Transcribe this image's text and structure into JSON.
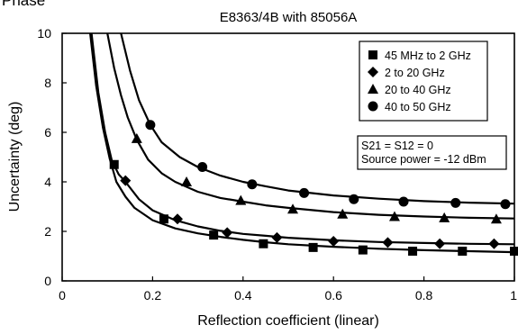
{
  "page_label": "Phase",
  "chart_data": {
    "type": "line",
    "title": "E8363/4B with 85056A",
    "xlabel": "Reflection coefficient (linear)",
    "ylabel": "Uncertainty (deg)",
    "xlim": [
      0,
      1
    ],
    "ylim": [
      0,
      10
    ],
    "xticks": [
      "0",
      "0.2",
      "0.4",
      "0.6",
      "0.8",
      "1"
    ],
    "yticks": [
      "0",
      "2",
      "4",
      "6",
      "8",
      "10"
    ],
    "grid": false,
    "legend_position": "top-right",
    "series": [
      {
        "name": "45 MHz to 2 GHz",
        "marker": "square",
        "curve": [
          [
            0.062,
            10
          ],
          [
            0.075,
            7.9
          ],
          [
            0.09,
            6.2
          ],
          [
            0.105,
            4.95
          ],
          [
            0.12,
            4.0
          ],
          [
            0.14,
            3.4
          ],
          [
            0.16,
            2.95
          ],
          [
            0.2,
            2.45
          ],
          [
            0.25,
            2.12
          ],
          [
            0.3,
            1.92
          ],
          [
            0.35,
            1.78
          ],
          [
            0.4,
            1.66
          ],
          [
            0.45,
            1.56
          ],
          [
            0.5,
            1.48
          ],
          [
            0.6,
            1.38
          ],
          [
            0.7,
            1.3
          ],
          [
            0.8,
            1.24
          ],
          [
            0.9,
            1.2
          ],
          [
            1.0,
            1.16
          ]
        ],
        "markers": [
          [
            0.115,
            4.7
          ],
          [
            0.225,
            2.5
          ],
          [
            0.335,
            1.85
          ],
          [
            0.445,
            1.5
          ],
          [
            0.555,
            1.35
          ],
          [
            0.665,
            1.25
          ],
          [
            0.775,
            1.2
          ],
          [
            0.885,
            1.2
          ],
          [
            1.0,
            1.2
          ]
        ]
      },
      {
        "name": "2 to 20 GHz",
        "marker": "diamond",
        "curve": [
          [
            0.065,
            10
          ],
          [
            0.08,
            7.6
          ],
          [
            0.095,
            6.0
          ],
          [
            0.11,
            4.85
          ],
          [
            0.125,
            4.3
          ],
          [
            0.14,
            4.0
          ],
          [
            0.17,
            3.3
          ],
          [
            0.2,
            2.85
          ],
          [
            0.25,
            2.45
          ],
          [
            0.3,
            2.2
          ],
          [
            0.35,
            2.02
          ],
          [
            0.4,
            1.9
          ],
          [
            0.45,
            1.82
          ],
          [
            0.5,
            1.74
          ],
          [
            0.6,
            1.64
          ],
          [
            0.7,
            1.57
          ],
          [
            0.8,
            1.53
          ],
          [
            0.9,
            1.5
          ],
          [
            1.0,
            1.48
          ]
        ],
        "markers": [
          [
            0.14,
            4.05
          ],
          [
            0.255,
            2.5
          ],
          [
            0.365,
            1.95
          ],
          [
            0.475,
            1.75
          ],
          [
            0.6,
            1.6
          ],
          [
            0.72,
            1.55
          ],
          [
            0.835,
            1.5
          ],
          [
            0.955,
            1.5
          ]
        ]
      },
      {
        "name": "20 to 40 GHz",
        "marker": "triangle",
        "curve": [
          [
            0.1,
            10
          ],
          [
            0.115,
            8.6
          ],
          [
            0.13,
            7.5
          ],
          [
            0.145,
            6.6
          ],
          [
            0.165,
            5.7
          ],
          [
            0.19,
            4.9
          ],
          [
            0.22,
            4.35
          ],
          [
            0.25,
            4.0
          ],
          [
            0.3,
            3.6
          ],
          [
            0.35,
            3.35
          ],
          [
            0.4,
            3.2
          ],
          [
            0.45,
            3.05
          ],
          [
            0.5,
            2.95
          ],
          [
            0.6,
            2.78
          ],
          [
            0.7,
            2.67
          ],
          [
            0.8,
            2.6
          ],
          [
            0.9,
            2.55
          ],
          [
            1.0,
            2.52
          ]
        ],
        "markers": [
          [
            0.165,
            5.75
          ],
          [
            0.275,
            4.0
          ],
          [
            0.395,
            3.25
          ],
          [
            0.51,
            2.9
          ],
          [
            0.62,
            2.7
          ],
          [
            0.735,
            2.6
          ],
          [
            0.845,
            2.55
          ],
          [
            0.96,
            2.5
          ]
        ]
      },
      {
        "name": "40 to 50 GHz",
        "marker": "circle",
        "curve": [
          [
            0.13,
            10
          ],
          [
            0.15,
            8.5
          ],
          [
            0.17,
            7.3
          ],
          [
            0.195,
            6.3
          ],
          [
            0.22,
            5.6
          ],
          [
            0.26,
            5.0
          ],
          [
            0.3,
            4.6
          ],
          [
            0.35,
            4.25
          ],
          [
            0.4,
            4.0
          ],
          [
            0.45,
            3.82
          ],
          [
            0.5,
            3.65
          ],
          [
            0.6,
            3.45
          ],
          [
            0.7,
            3.32
          ],
          [
            0.8,
            3.22
          ],
          [
            0.9,
            3.16
          ],
          [
            1.0,
            3.12
          ]
        ],
        "markers": [
          [
            0.195,
            6.3
          ],
          [
            0.31,
            4.6
          ],
          [
            0.42,
            3.9
          ],
          [
            0.535,
            3.55
          ],
          [
            0.645,
            3.3
          ],
          [
            0.755,
            3.2
          ],
          [
            0.87,
            3.15
          ],
          [
            0.98,
            3.1
          ]
        ]
      }
    ],
    "annotations": [
      "S21 = S12 = 0",
      "Source power = -12 dBm"
    ]
  }
}
